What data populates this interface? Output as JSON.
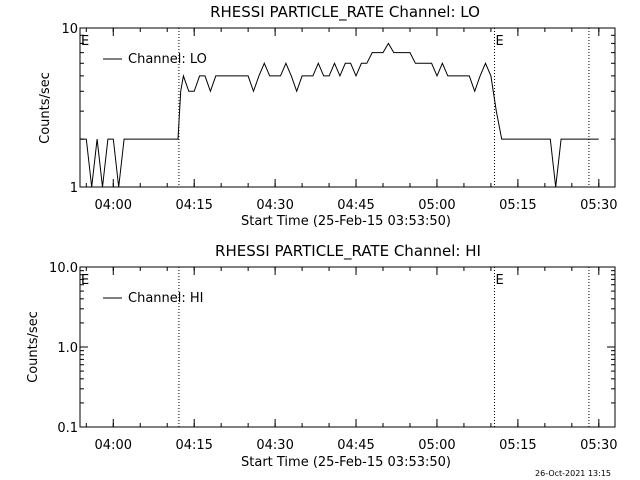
{
  "footer_stamp": "26-Oct-2021 13:15",
  "chart_data": [
    {
      "type": "line",
      "title": "RHESSI PARTICLE_RATE Channel: LO",
      "xlabel": "Start Time (25-Feb-15 03:53:50)",
      "ylabel": "Counts/sec",
      "yscale": "log",
      "ylim": [
        1,
        10
      ],
      "xlim": [
        "03:53:50",
        "05:33:00"
      ],
      "ytick_labels": [
        "1",
        "10"
      ],
      "xtick_labels": [
        "04:00",
        "04:15",
        "04:30",
        "04:45",
        "05:00",
        "05:15",
        "05:30"
      ],
      "legend": {
        "label": "Channel: LO",
        "placement": "top-left"
      },
      "markers": [
        {
          "label": "E",
          "time": "03:53:50"
        },
        {
          "time": "04:12:10"
        },
        {
          "label": "E",
          "time": "05:10:40"
        },
        {
          "time": "05:28:10"
        }
      ],
      "series": [
        {
          "name": "Channel: LO",
          "x": [
            "03:53:50",
            "03:55:00",
            "03:56:00",
            "03:57:00",
            "03:58:00",
            "03:59:00",
            "04:00:00",
            "04:01:00",
            "04:02:00",
            "04:03:00",
            "04:04:00",
            "04:05:00",
            "04:06:00",
            "04:07:00",
            "04:08:00",
            "04:09:00",
            "04:10:00",
            "04:11:00",
            "04:12:00",
            "04:12:30",
            "04:13:00",
            "04:14:00",
            "04:15:00",
            "04:16:00",
            "04:17:00",
            "04:18:00",
            "04:19:00",
            "04:20:00",
            "04:21:00",
            "04:22:00",
            "04:23:00",
            "04:24:00",
            "04:25:00",
            "04:26:00",
            "04:27:00",
            "04:28:00",
            "04:29:00",
            "04:30:00",
            "04:31:00",
            "04:32:00",
            "04:33:00",
            "04:34:00",
            "04:35:00",
            "04:36:00",
            "04:37:00",
            "04:38:00",
            "04:39:00",
            "04:40:00",
            "04:41:00",
            "04:42:00",
            "04:43:00",
            "04:44:00",
            "04:45:00",
            "04:46:00",
            "04:47:00",
            "04:48:00",
            "04:49:00",
            "04:50:00",
            "04:51:00",
            "04:52:00",
            "04:53:00",
            "04:54:00",
            "04:55:00",
            "04:56:00",
            "04:57:00",
            "04:58:00",
            "04:59:00",
            "05:00:00",
            "05:01:00",
            "05:02:00",
            "05:03:00",
            "05:04:00",
            "05:05:00",
            "05:06:00",
            "05:07:00",
            "05:08:00",
            "05:09:00",
            "05:10:00",
            "05:11:00",
            "05:12:00",
            "05:13:00",
            "05:14:00",
            "05:15:00",
            "05:16:00",
            "05:17:00",
            "05:18:00",
            "05:19:00",
            "05:20:00",
            "05:21:00",
            "05:22:00",
            "05:23:00",
            "05:24:00",
            "05:25:00",
            "05:26:00",
            "05:27:00",
            "05:28:00",
            "05:29:00",
            "05:30:00"
          ],
          "y": [
            2,
            2,
            1,
            2,
            1,
            2,
            2,
            1,
            2,
            2,
            2,
            2,
            2,
            2,
            2,
            2,
            2,
            2,
            2,
            4,
            5,
            4,
            4,
            5,
            5,
            4,
            5,
            5,
            5,
            5,
            5,
            5,
            5,
            4,
            5,
            6,
            5,
            5,
            5,
            6,
            5,
            4,
            5,
            5,
            5,
            6,
            5,
            5,
            6,
            5,
            6,
            6,
            5,
            6,
            6,
            7,
            7,
            7,
            8,
            7,
            7,
            7,
            7,
            6,
            6,
            6,
            6,
            5,
            6,
            5,
            5,
            5,
            5,
            5,
            4,
            5,
            6,
            5,
            3,
            2,
            2,
            2,
            2,
            2,
            2,
            2,
            2,
            2,
            2,
            1,
            2,
            2,
            2,
            2,
            2,
            2,
            2,
            2
          ]
        }
      ]
    },
    {
      "type": "line",
      "title": "RHESSI PARTICLE_RATE Channel: HI",
      "xlabel": "Start Time (25-Feb-15 03:53:50)",
      "ylabel": "Counts/sec",
      "yscale": "log",
      "ylim": [
        0.1,
        10
      ],
      "xlim": [
        "03:53:50",
        "05:33:00"
      ],
      "ytick_labels": [
        "0.1",
        "1.0",
        "10.0"
      ],
      "xtick_labels": [
        "04:00",
        "04:15",
        "04:30",
        "04:45",
        "05:00",
        "05:15",
        "05:30"
      ],
      "legend": {
        "label": "Channel: HI",
        "placement": "top-left"
      },
      "markers": [
        {
          "label": "E",
          "time": "03:53:50"
        },
        {
          "time": "04:12:10"
        },
        {
          "label": "E",
          "time": "05:10:40"
        },
        {
          "time": "05:28:10"
        }
      ],
      "series": [
        {
          "name": "Channel: HI",
          "x": [],
          "y": []
        }
      ]
    }
  ]
}
